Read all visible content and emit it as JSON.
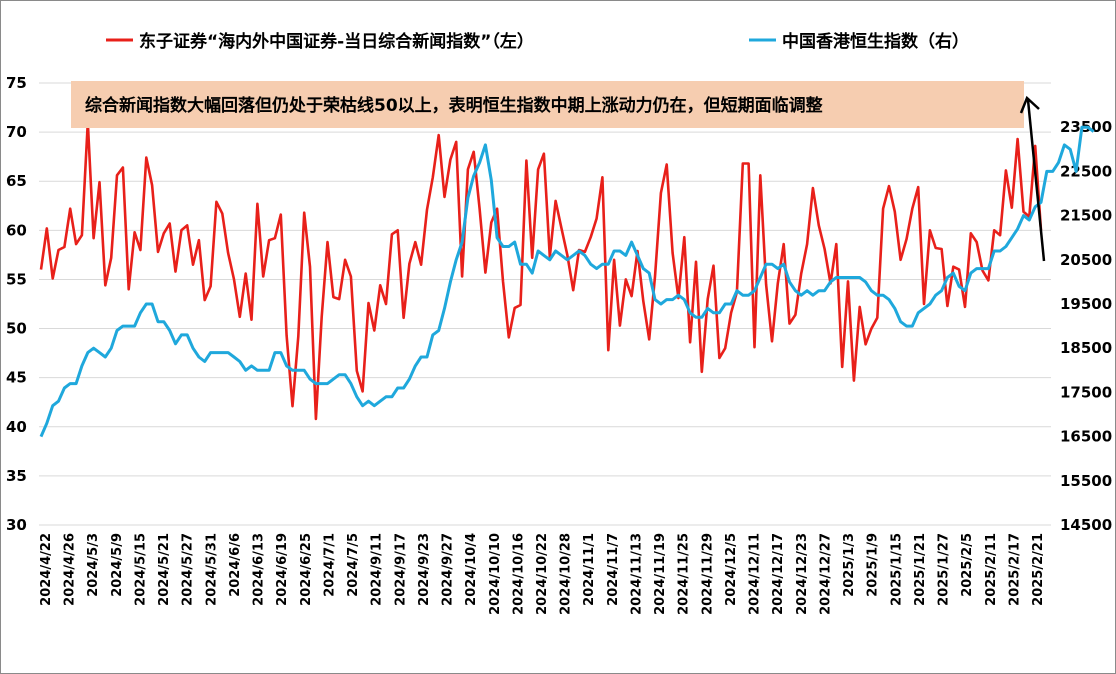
{
  "chart_data": {
    "type": "line",
    "title": "",
    "legend": {
      "position": "top",
      "entries": [
        {
          "name": "东子证券“海内外中国证券-当日综合新闻指数”（左）",
          "color": "#e8201a"
        },
        {
          "name": "中国香港恒生指数（右）",
          "color": "#1fa8dc"
        }
      ]
    },
    "annotation": {
      "text": "综合新闻指数大幅回落但仍处于荣枯线50以上，表明恒生指数中期上涨动力仍在，但短期面临调整",
      "background": "#f6cdb0"
    },
    "grid": true,
    "y_left": {
      "min": 30,
      "max": 75,
      "step": 5,
      "ticks": [
        "30",
        "35",
        "40",
        "45",
        "50",
        "55",
        "60",
        "65",
        "70",
        "75"
      ]
    },
    "y_right": {
      "min": 14500,
      "max": 24500,
      "step": 1000,
      "ticks": [
        "14500",
        "15500",
        "16500",
        "17500",
        "18500",
        "19500",
        "20500",
        "21500",
        "22500",
        "23500"
      ]
    },
    "x_tick_labels": [
      "2024/4/22",
      "2024/4/26",
      "2024/5/3",
      "2024/5/9",
      "2024/5/15",
      "2024/5/21",
      "2024/5/27",
      "2024/5/31",
      "2024/6/6",
      "2024/6/13",
      "2024/6/19",
      "2024/6/25",
      "2024/7/1",
      "2024/7/5",
      "2024/9/11",
      "2024/9/17",
      "2024/9/23",
      "2024/9/27",
      "2024/10/4",
      "2024/10/10",
      "2024/10/16",
      "2024/10/22",
      "2024/10/28",
      "2024/11/1",
      "2024/11/7",
      "2024/11/13",
      "2024/11/19",
      "2024/11/25",
      "2024/11/29",
      "2024/12/5",
      "2024/12/11",
      "2024/12/17",
      "2024/12/23",
      "2024/12/27",
      "2025/1/3",
      "2025/1/9",
      "2025/1/15",
      "2025/1/21",
      "2025/1/27",
      "2025/2/5",
      "2025/2/11",
      "2025/2/17",
      "2025/2/21"
    ],
    "series": [
      {
        "name": "东子证券“海内外中国证券-当日综合新闻指数”（左）",
        "axis": "left",
        "color": "#e8201a",
        "values": [
          56,
          60.2,
          55.1,
          58,
          58.3,
          62.2,
          58.6,
          59.5,
          71,
          59.2,
          64.9,
          54.4,
          57.2,
          65.6,
          66.4,
          54,
          59.8,
          58,
          67.4,
          64.6,
          57.8,
          59.7,
          60.7,
          55.8,
          60,
          60.5,
          56.5,
          59,
          52.9,
          54.3,
          62.9,
          61.7,
          57.7,
          55,
          51.2,
          55.6,
          50.9,
          62.7,
          55.3,
          59,
          59.2,
          61.6,
          49.3,
          42.1,
          49.2,
          61.8,
          56.3,
          40.8,
          51.2,
          58.8,
          53.2,
          53,
          57,
          55.3,
          45.7,
          43.6,
          52.6,
          49.8,
          54.4,
          52.5,
          59.6,
          60,
          51.1,
          56.6,
          58.8,
          56.5,
          62.1,
          65.4,
          69.7,
          63.4,
          67.2,
          69,
          55.3,
          66.2,
          68,
          62.2,
          55.7,
          60.8,
          62.2,
          54.8,
          49.1,
          52.1,
          52.4,
          67.1,
          57.2,
          66.2,
          67.8,
          57.3,
          63,
          60.2,
          57.5,
          53.9,
          58,
          57.8,
          59.3,
          61.2,
          65.4,
          47.8,
          57,
          50.3,
          55,
          53.3,
          57.9,
          52.8,
          48.9,
          55.3,
          63.8,
          66.7,
          57.7,
          53.1,
          59.3,
          48.6,
          56.8,
          45.6,
          53,
          56.4,
          47,
          48,
          51.6,
          53.7,
          66.8,
          66.8,
          48.1,
          65.6,
          54.5,
          48.7,
          54.6,
          58.6,
          50.5,
          51.4,
          55.6,
          58.6,
          64.3,
          60.5,
          58.1,
          54.6,
          58.6,
          46.1,
          54.8,
          44.7,
          52.2,
          48.4,
          50,
          51.1,
          62.2,
          64.5,
          61.9,
          57,
          59.1,
          62.2,
          64.4,
          52.5,
          60,
          58.2,
          58.1,
          52.3,
          56.3,
          56,
          52.2,
          59.7,
          58.8,
          55.9,
          54.9,
          60,
          59.5,
          66.1,
          62.3,
          69.3,
          61.9,
          61.4,
          68.6,
          60
        ]
      },
      {
        "name": "中国香港恒生指数（右）",
        "axis": "right",
        "color": "#1fa8dc",
        "values": [
          16500,
          16800,
          17200,
          17300,
          17600,
          17700,
          17700,
          18100,
          18400,
          18500,
          18400,
          18300,
          18500,
          18900,
          19000,
          19000,
          19000,
          19300,
          19500,
          19500,
          19100,
          19100,
          18900,
          18600,
          18800,
          18800,
          18500,
          18300,
          18200,
          18400,
          18400,
          18400,
          18400,
          18300,
          18200,
          18000,
          18100,
          18000,
          18000,
          18000,
          18400,
          18400,
          18100,
          18000,
          18000,
          18000,
          17800,
          17700,
          17700,
          17700,
          17800,
          17900,
          17900,
          17700,
          17400,
          17200,
          17300,
          17200,
          17300,
          17400,
          17400,
          17600,
          17600,
          17800,
          18100,
          18300,
          18300,
          18800,
          18900,
          19400,
          20000,
          20500,
          20900,
          21900,
          22400,
          22700,
          23100,
          22300,
          21000,
          20800,
          20800,
          20900,
          20400,
          20400,
          20200,
          20700,
          20600,
          20500,
          20700,
          20600,
          20500,
          20600,
          20700,
          20600,
          20400,
          20300,
          20400,
          20400,
          20700,
          20700,
          20600,
          20900,
          20600,
          20300,
          20200,
          19600,
          19500,
          19600,
          19600,
          19700,
          19600,
          19300,
          19200,
          19200,
          19400,
          19300,
          19300,
          19500,
          19500,
          19800,
          19700,
          19700,
          19800,
          20100,
          20400,
          20400,
          20300,
          20400,
          20000,
          19800,
          19700,
          19800,
          19700,
          19800,
          19800,
          20000,
          20100,
          20100,
          20100,
          20100,
          20100,
          20000,
          19800,
          19700,
          19700,
          19600,
          19400,
          19100,
          19000,
          19000,
          19300,
          19400,
          19500,
          19700,
          19800,
          20100,
          20200,
          19900,
          19800,
          20200,
          20300,
          20300,
          20300,
          20700,
          20700,
          20800,
          21000,
          21200,
          21500,
          21400,
          21700,
          21800,
          22500,
          22500,
          22700,
          23100,
          23000,
          22500,
          23500,
          23500,
          23400
        ]
      }
    ]
  }
}
